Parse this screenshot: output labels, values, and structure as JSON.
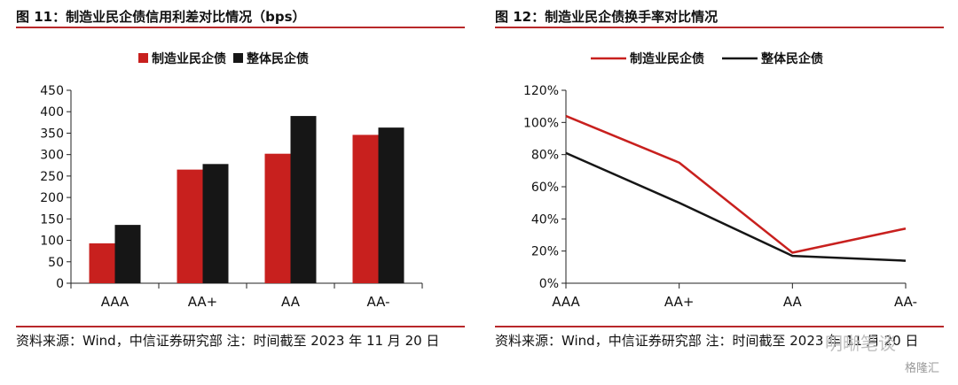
{
  "left_panel": {
    "figure_title": "图 11：制造业民企债信用利差对比情况（bps）",
    "source": "资料来源：Wind，中信证券研究部 注：时间截至 2023 年 11 月 20 日"
  },
  "right_panel": {
    "figure_title": "图 12：制造业民企债换手率对比情况",
    "source": "资料来源：Wind，中信证券研究部 注：时间截至 2023 年 11 月 20 日"
  },
  "watermark": {
    "text": "明晰笔谈",
    "logo_text": "格隆汇"
  },
  "colors": {
    "series1": "#c8201e",
    "series2": "#161616",
    "accent_rule": "#b8282a",
    "axis": "#222222"
  },
  "chart_data": [
    {
      "type": "bar",
      "title": "",
      "categories": [
        "AAA",
        "AA+",
        "AA",
        "AA-"
      ],
      "series": [
        {
          "name": "制造业民企债",
          "values": [
            93,
            265,
            302,
            346
          ]
        },
        {
          "name": "整体民企债",
          "values": [
            136,
            278,
            390,
            363
          ]
        }
      ],
      "ylim": [
        0,
        450
      ],
      "yticks": [
        0,
        50,
        100,
        150,
        200,
        250,
        300,
        350,
        400,
        450
      ],
      "ytick_labels": [
        "0",
        "50",
        "100",
        "150",
        "200",
        "250",
        "300",
        "350",
        "400",
        "450"
      ],
      "legend_position": "top",
      "grid": false
    },
    {
      "type": "line",
      "title": "",
      "categories": [
        "AAA",
        "AA+",
        "AA",
        "AA-"
      ],
      "series": [
        {
          "name": "制造业民企债",
          "values": [
            104,
            75,
            19,
            34
          ]
        },
        {
          "name": "整体民企债",
          "values": [
            81,
            50,
            17,
            14
          ]
        }
      ],
      "ylim": [
        0,
        120
      ],
      "yticks": [
        0,
        20,
        40,
        60,
        80,
        100,
        120
      ],
      "ytick_labels": [
        "0%",
        "20%",
        "40%",
        "60%",
        "80%",
        "100%",
        "120%"
      ],
      "legend_position": "top",
      "grid": false
    }
  ]
}
